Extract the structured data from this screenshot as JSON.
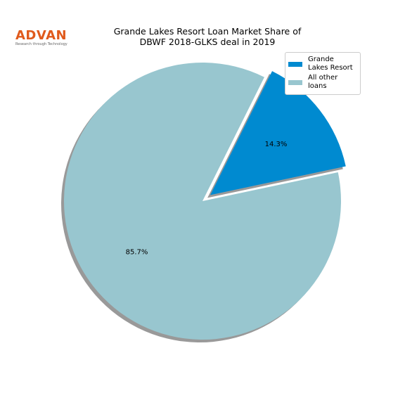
{
  "logo": {
    "text": "ADVAN",
    "tagline": "Research through Technology"
  },
  "chart_data": {
    "type": "pie",
    "title": "Grande Lakes Resort Loan Market Share of\nDBWF 2018-GLKS deal in 2019",
    "categories": [
      "Grande\nLakes Resort",
      "All other loans"
    ],
    "values": [
      14.3,
      85.7
    ],
    "value_labels": [
      "14.3%",
      "85.7%"
    ],
    "colors": [
      "#008ad0",
      "#98c6cf"
    ],
    "shadow": true
  }
}
